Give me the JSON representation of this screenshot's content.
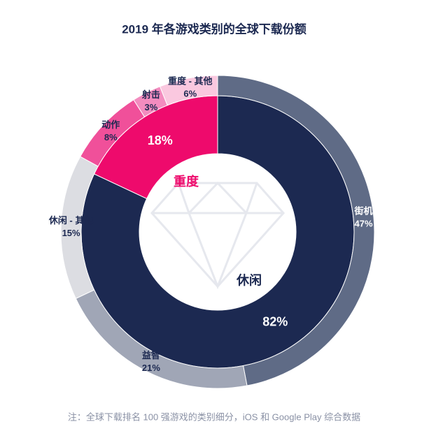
{
  "chart_data": {
    "type": "donut",
    "title": "2019 年各游戏类别的全球下载份额",
    "note": "注：全球下载排名 100 强游戏的类别细分，iOS 和 Google Play 综合数据",
    "rings": [
      {
        "categories": [
          "休闲",
          "重度"
        ],
        "values": [
          82,
          18
        ],
        "value_labels": [
          "82%",
          "18%"
        ],
        "colors": [
          "#1c2951",
          "#ee0a6c"
        ],
        "label_colors": [
          "#1c2951",
          "#ee0a6c"
        ]
      },
      {
        "categories": [
          "街机",
          "益智",
          "休闲 - 其他",
          "动作",
          "射击",
          "重度 - 其他"
        ],
        "values": [
          47,
          21,
          15,
          8,
          3,
          6
        ],
        "value_labels": [
          "47%",
          "21%",
          "15%",
          "8%",
          "3%",
          "6%"
        ],
        "colors": [
          "#5f6b86",
          "#a0a6b6",
          "#dcdde2",
          "#f0509a",
          "#f38cbf",
          "#fac8df"
        ]
      }
    ]
  }
}
